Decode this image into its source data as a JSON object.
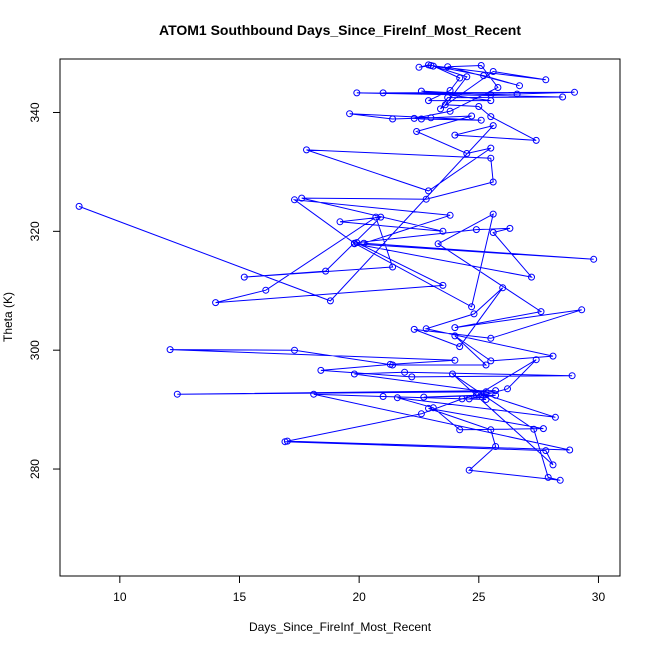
{
  "chart_data": {
    "type": "line",
    "title": "ATOM1 Southbound Days_Since_FireInf_Most_Recent",
    "xlabel": "Days_Since_FireInf_Most_Recent",
    "ylabel": "Theta (K)",
    "xlim": [
      7.5,
      30.9
    ],
    "ylim": [
      262,
      349
    ],
    "xticks": [
      10,
      15,
      20,
      25,
      30
    ],
    "yticks": [
      280,
      300,
      320,
      340
    ],
    "grid": false,
    "color": "#0000ff",
    "series": [
      {
        "points": [
          [
            8.3,
            324.2
          ],
          [
            18.8,
            308.3
          ],
          [
            25.6,
            337.8
          ],
          [
            24.0,
            336.2
          ],
          [
            27.4,
            335.3
          ],
          [
            25.5,
            339.3
          ],
          [
            25.0,
            341.0
          ],
          [
            23.6,
            341.3
          ],
          [
            24.5,
            346.0
          ],
          [
            23.1,
            347.8
          ],
          [
            24.2,
            345.8
          ],
          [
            23.8,
            343.7
          ],
          [
            22.9,
            342.0
          ],
          [
            25.5,
            342.0
          ],
          [
            22.6,
            343.6
          ],
          [
            25.5,
            343.0
          ],
          [
            29.0,
            343.4
          ],
          [
            21.0,
            343.3
          ],
          [
            26.6,
            343.1
          ],
          [
            19.9,
            343.3
          ],
          [
            28.5,
            342.6
          ],
          [
            23.7,
            342.5
          ],
          [
            23.4,
            340.6
          ],
          [
            25.6,
            346.9
          ],
          [
            27.8,
            345.5
          ],
          [
            23.0,
            347.9
          ],
          [
            22.5,
            347.6
          ],
          [
            22.9,
            348.0
          ],
          [
            25.2,
            346.2
          ],
          [
            26.7,
            344.5
          ],
          [
            23.7,
            347.7
          ],
          [
            25.1,
            347.9
          ],
          [
            25.8,
            344.2
          ],
          [
            23.8,
            340.2
          ],
          [
            22.3,
            339.0
          ],
          [
            22.6,
            338.9
          ],
          [
            25.1,
            338.7
          ],
          [
            19.6,
            339.8
          ],
          [
            21.4,
            338.9
          ],
          [
            23.0,
            339.1
          ],
          [
            24.7,
            339.4
          ],
          [
            22.4,
            336.8
          ],
          [
            24.5,
            333.1
          ],
          [
            25.5,
            334.0
          ],
          [
            22.9,
            326.8
          ],
          [
            17.8,
            333.7
          ],
          [
            25.5,
            332.3
          ],
          [
            25.6,
            328.3
          ],
          [
            22.8,
            325.4
          ],
          [
            17.6,
            325.6
          ],
          [
            23.5,
            320.0
          ],
          [
            19.2,
            321.6
          ],
          [
            20.9,
            322.4
          ],
          [
            18.6,
            313.3
          ],
          [
            15.2,
            312.3
          ],
          [
            21.4,
            314.0
          ],
          [
            20.7,
            322.4
          ],
          [
            16.1,
            310.1
          ],
          [
            14.0,
            308.0
          ],
          [
            23.5,
            310.9
          ],
          [
            19.9,
            318.1
          ],
          [
            24.9,
            320.3
          ],
          [
            26.3,
            320.5
          ],
          [
            25.6,
            319.8
          ],
          [
            27.2,
            312.3
          ],
          [
            19.8,
            317.9
          ],
          [
            29.8,
            315.3
          ],
          [
            20.2,
            318.0
          ],
          [
            23.8,
            322.7
          ],
          [
            17.3,
            325.3
          ],
          [
            19.8,
            318.0
          ],
          [
            24.7,
            307.3
          ],
          [
            25.6,
            322.9
          ],
          [
            23.3,
            317.9
          ],
          [
            27.6,
            306.5
          ],
          [
            24.0,
            303.8
          ],
          [
            29.3,
            306.8
          ],
          [
            25.5,
            302.0
          ],
          [
            22.3,
            303.5
          ],
          [
            24.2,
            300.6
          ],
          [
            26.0,
            310.5
          ],
          [
            24.8,
            306.1
          ],
          [
            22.8,
            303.6
          ],
          [
            28.1,
            299.0
          ],
          [
            25.5,
            298.2
          ],
          [
            24.0,
            302.4
          ],
          [
            25.3,
            297.5
          ],
          [
            21.4,
            297.5
          ],
          [
            17.3,
            300.0
          ],
          [
            12.1,
            300.1
          ],
          [
            24.0,
            298.3
          ],
          [
            21.3,
            297.6
          ],
          [
            18.4,
            296.6
          ],
          [
            22.2,
            295.5
          ],
          [
            28.9,
            295.7
          ],
          [
            21.9,
            296.3
          ],
          [
            19.8,
            296.0
          ],
          [
            25.3,
            293.0
          ],
          [
            12.4,
            292.6
          ],
          [
            25.7,
            293.2
          ],
          [
            24.3,
            291.8
          ],
          [
            22.6,
            289.3
          ],
          [
            17.0,
            284.7
          ],
          [
            28.8,
            283.2
          ],
          [
            18.1,
            292.6
          ],
          [
            21.0,
            292.2
          ],
          [
            25.3,
            291.7
          ],
          [
            24.9,
            292.4
          ],
          [
            22.7,
            292.1
          ],
          [
            25.7,
            292.4
          ],
          [
            24.6,
            291.8
          ],
          [
            26.2,
            293.5
          ],
          [
            27.4,
            298.4
          ],
          [
            25.0,
            292.6
          ],
          [
            25.3,
            292.5
          ],
          [
            28.2,
            288.7
          ],
          [
            21.6,
            292.0
          ],
          [
            23.1,
            290.3
          ],
          [
            24.2,
            286.6
          ],
          [
            27.7,
            286.8
          ],
          [
            22.9,
            290.2
          ],
          [
            25.5,
            286.6
          ],
          [
            25.7,
            283.8
          ],
          [
            24.6,
            279.8
          ],
          [
            28.4,
            278.1
          ],
          [
            27.9,
            278.6
          ],
          [
            27.3,
            286.7
          ],
          [
            23.9,
            296.0
          ],
          [
            28.1,
            280.7
          ],
          [
            27.8,
            283.1
          ],
          [
            16.9,
            284.6
          ]
        ]
      }
    ]
  }
}
